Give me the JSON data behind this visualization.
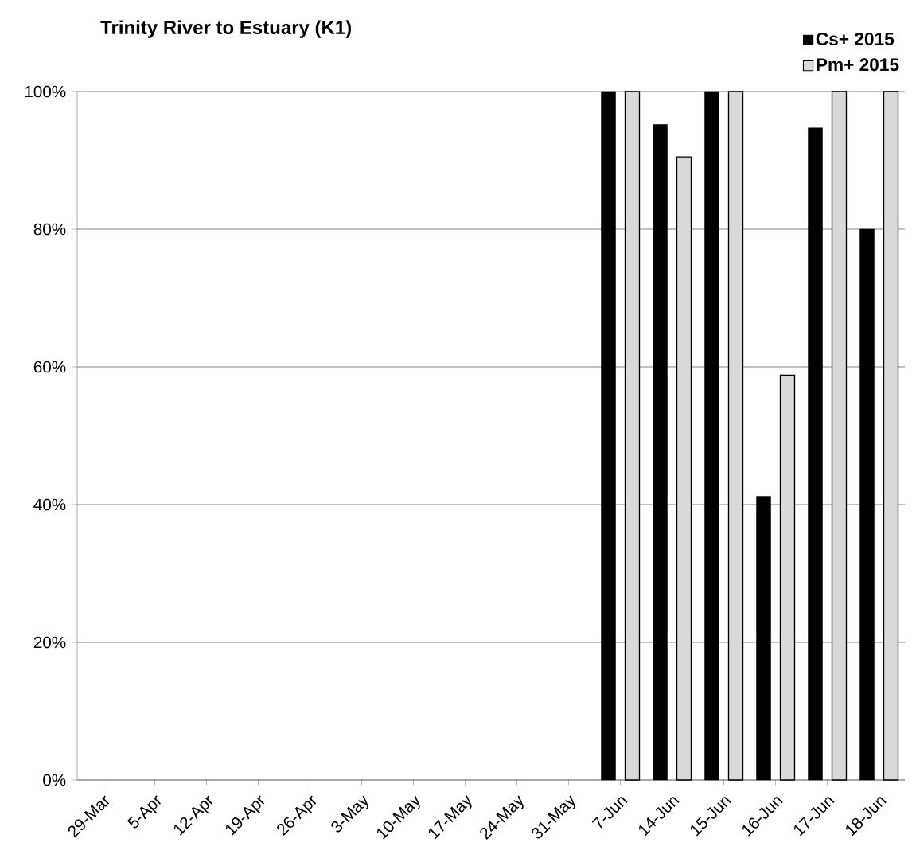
{
  "chart_data": {
    "type": "bar",
    "title": "Trinity River to Estuary (K1)",
    "categories": [
      "29-Mar",
      "5-Apr",
      "12-Apr",
      "19-Apr",
      "26-Apr",
      "3-May",
      "10-May",
      "17-May",
      "24-May",
      "31-May",
      "7-Jun",
      "14-Jun",
      "15-Jun",
      "16-Jun",
      "17-Jun",
      "18-Jun"
    ],
    "series": [
      {
        "name": "Cs+ 2015",
        "color": "#000000",
        "values": [
          null,
          null,
          null,
          null,
          null,
          null,
          null,
          null,
          null,
          null,
          100,
          95.2,
          100,
          41.2,
          94.7,
          80
        ]
      },
      {
        "name": "Pm+ 2015",
        "color": "#d9d9d9",
        "values": [
          null,
          null,
          null,
          null,
          null,
          null,
          null,
          null,
          null,
          null,
          100,
          90.5,
          100,
          58.8,
          100,
          100
        ]
      }
    ],
    "ylim": [
      0,
      100
    ],
    "yticks": [
      {
        "value": 0,
        "label": "0%"
      },
      {
        "value": 20,
        "label": "20%"
      },
      {
        "value": 40,
        "label": "40%"
      },
      {
        "value": 60,
        "label": "60%"
      },
      {
        "value": 80,
        "label": "80%"
      },
      {
        "value": 100,
        "label": "100%"
      }
    ],
    "grid": "y",
    "legend": "top right"
  }
}
